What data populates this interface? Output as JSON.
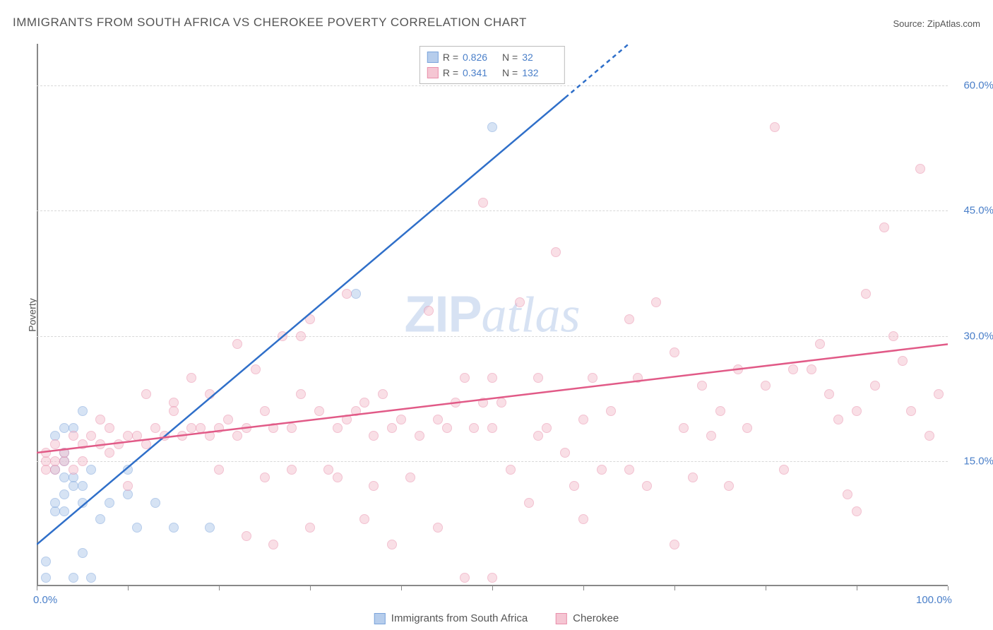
{
  "title": "IMMIGRANTS FROM SOUTH AFRICA VS CHEROKEE POVERTY CORRELATION CHART",
  "source_prefix": "Source: ",
  "source_name": "ZipAtlas.com",
  "ylabel": "Poverty",
  "watermark_zip": "ZIP",
  "watermark_atlas": "atlas",
  "chart": {
    "type": "scatter",
    "xlim": [
      0,
      100
    ],
    "ylim": [
      0,
      65
    ],
    "yticks": [
      15,
      30,
      45,
      60
    ],
    "ytick_labels": [
      "15.0%",
      "30.0%",
      "45.0%",
      "60.0%"
    ],
    "xticks": [
      0,
      10,
      20,
      30,
      40,
      50,
      60,
      70,
      80,
      90,
      100
    ],
    "xtick_labels": {
      "0": "0.0%",
      "100": "100.0%"
    },
    "background_color": "#ffffff",
    "grid_color": "#d8d8d8",
    "axis_color": "#888888",
    "tick_label_color": "#4a7fc9",
    "marker_radius": 7,
    "marker_opacity": 0.55
  },
  "series": [
    {
      "key": "sa",
      "label": "Immigrants from South Africa",
      "fill_color": "#b6cdec",
      "stroke_color": "#7ba4db",
      "line_color": "#2f6fc9",
      "line_width": 2.5,
      "R": "0.826",
      "N": "32",
      "regression": {
        "x1": 0,
        "y1": 5,
        "x2": 65,
        "y2": 65,
        "dash_after_x": 58
      },
      "points": [
        [
          1,
          1
        ],
        [
          1,
          3
        ],
        [
          4,
          1
        ],
        [
          6,
          1
        ],
        [
          2,
          9
        ],
        [
          2,
          10
        ],
        [
          3,
          9
        ],
        [
          3,
          11
        ],
        [
          3,
          13
        ],
        [
          4,
          13
        ],
        [
          2,
          14
        ],
        [
          3,
          15
        ],
        [
          4,
          12
        ],
        [
          5,
          12
        ],
        [
          6,
          14
        ],
        [
          3,
          16
        ],
        [
          2,
          18
        ],
        [
          3,
          19
        ],
        [
          4,
          19
        ],
        [
          5,
          21
        ],
        [
          5,
          10
        ],
        [
          7,
          8
        ],
        [
          8,
          10
        ],
        [
          10,
          11
        ],
        [
          11,
          7
        ],
        [
          13,
          10
        ],
        [
          15,
          7
        ],
        [
          19,
          7
        ],
        [
          10,
          14
        ],
        [
          35,
          35
        ],
        [
          50,
          55
        ],
        [
          5,
          4
        ]
      ]
    },
    {
      "key": "cherokee",
      "label": "Cherokee",
      "fill_color": "#f5c6d3",
      "stroke_color": "#e98fab",
      "line_color": "#e15a87",
      "line_width": 2.5,
      "R": "0.341",
      "N": "132",
      "regression": {
        "x1": 0,
        "y1": 16,
        "x2": 100,
        "y2": 29
      },
      "points": [
        [
          1,
          14
        ],
        [
          1,
          15
        ],
        [
          2,
          14
        ],
        [
          2,
          15
        ],
        [
          3,
          15
        ],
        [
          3,
          16
        ],
        [
          4,
          14
        ],
        [
          5,
          15
        ],
        [
          1,
          16
        ],
        [
          2,
          17
        ],
        [
          5,
          17
        ],
        [
          6,
          18
        ],
        [
          7,
          17
        ],
        [
          8,
          16
        ],
        [
          9,
          17
        ],
        [
          10,
          18
        ],
        [
          11,
          18
        ],
        [
          12,
          17
        ],
        [
          13,
          19
        ],
        [
          14,
          18
        ],
        [
          15,
          22
        ],
        [
          16,
          18
        ],
        [
          17,
          19
        ],
        [
          18,
          19
        ],
        [
          19,
          18
        ],
        [
          20,
          19
        ],
        [
          21,
          20
        ],
        [
          22,
          18
        ],
        [
          23,
          19
        ],
        [
          24,
          26
        ],
        [
          25,
          21
        ],
        [
          26,
          19
        ],
        [
          27,
          30
        ],
        [
          28,
          19
        ],
        [
          29,
          23
        ],
        [
          30,
          32
        ],
        [
          31,
          21
        ],
        [
          32,
          14
        ],
        [
          33,
          19
        ],
        [
          34,
          20
        ],
        [
          35,
          21
        ],
        [
          36,
          22
        ],
        [
          37,
          18
        ],
        [
          38,
          23
        ],
        [
          39,
          19
        ],
        [
          40,
          20
        ],
        [
          26,
          5
        ],
        [
          33,
          13
        ],
        [
          37,
          12
        ],
        [
          39,
          5
        ],
        [
          19,
          23
        ],
        [
          17,
          25
        ],
        [
          15,
          21
        ],
        [
          12,
          23
        ],
        [
          10,
          12
        ],
        [
          8,
          19
        ],
        [
          7,
          20
        ],
        [
          4,
          18
        ],
        [
          41,
          13
        ],
        [
          42,
          18
        ],
        [
          43,
          33
        ],
        [
          44,
          20
        ],
        [
          45,
          19
        ],
        [
          46,
          22
        ],
        [
          47,
          1
        ],
        [
          48,
          19
        ],
        [
          49,
          46
        ],
        [
          50,
          19
        ],
        [
          50,
          1
        ],
        [
          51,
          22
        ],
        [
          52,
          14
        ],
        [
          53,
          34
        ],
        [
          54,
          10
        ],
        [
          55,
          18
        ],
        [
          56,
          19
        ],
        [
          57,
          40
        ],
        [
          58,
          16
        ],
        [
          59,
          12
        ],
        [
          60,
          20
        ],
        [
          61,
          25
        ],
        [
          62,
          14
        ],
        [
          63,
          21
        ],
        [
          65,
          14
        ],
        [
          66,
          25
        ],
        [
          67,
          12
        ],
        [
          68,
          34
        ],
        [
          70,
          28
        ],
        [
          71,
          19
        ],
        [
          72,
          13
        ],
        [
          73,
          24
        ],
        [
          74,
          18
        ],
        [
          76,
          12
        ],
        [
          77,
          26
        ],
        [
          78,
          19
        ],
        [
          80,
          24
        ],
        [
          81,
          55
        ],
        [
          82,
          14
        ],
        [
          85,
          26
        ],
        [
          86,
          29
        ],
        [
          87,
          23
        ],
        [
          88,
          20
        ],
        [
          89,
          11
        ],
        [
          90,
          9
        ],
        [
          90,
          21
        ],
        [
          91,
          35
        ],
        [
          92,
          24
        ],
        [
          93,
          43
        ],
        [
          95,
          27
        ],
        [
          96,
          21
        ],
        [
          97,
          50
        ],
        [
          98,
          18
        ],
        [
          99,
          23
        ],
        [
          47,
          25
        ],
        [
          49,
          22
        ],
        [
          34,
          35
        ],
        [
          29,
          30
        ],
        [
          22,
          29
        ],
        [
          20,
          14
        ],
        [
          23,
          6
        ],
        [
          25,
          13
        ],
        [
          28,
          14
        ],
        [
          30,
          7
        ],
        [
          36,
          8
        ],
        [
          44,
          7
        ],
        [
          50,
          25
        ],
        [
          55,
          25
        ],
        [
          60,
          8
        ],
        [
          65,
          32
        ],
        [
          70,
          5
        ],
        [
          75,
          21
        ],
        [
          83,
          26
        ],
        [
          94,
          30
        ]
      ]
    }
  ],
  "corr_labels": {
    "R": "R =",
    "N": "N ="
  },
  "legend_location": "top-center"
}
